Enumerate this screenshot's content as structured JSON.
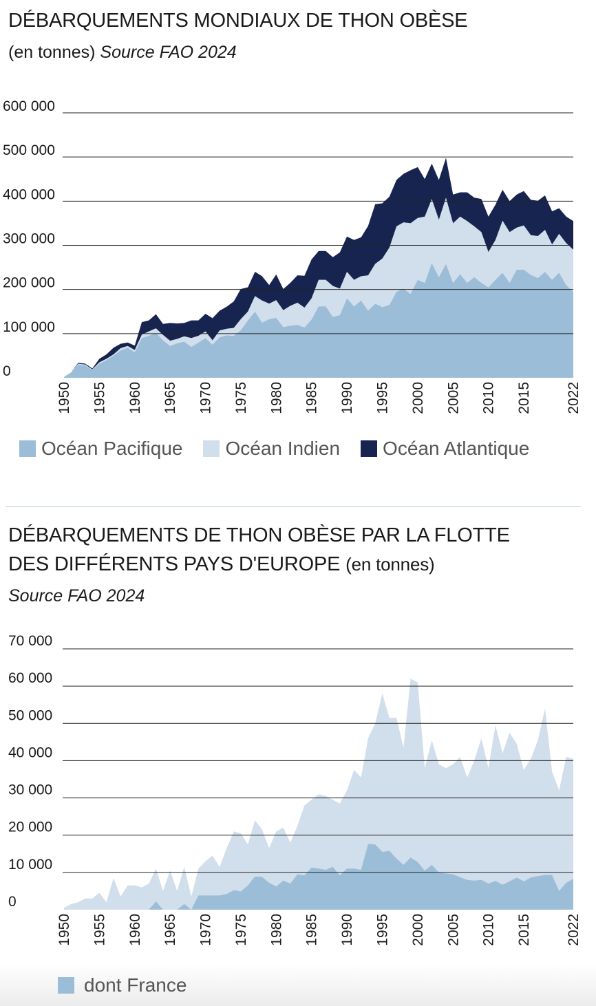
{
  "chart_data": [
    {
      "type": "area",
      "stacked": true,
      "title": "DÉBARQUEMENTS MONDIAUX DE THON OBÈSE",
      "unit": "(en tonnes)",
      "source": "Source FAO 2024",
      "ylim": [
        0,
        600000
      ],
      "yticks": [
        "600 000",
        "500 000",
        "400 000",
        "300 000",
        "200 000",
        "100 000",
        "0"
      ],
      "ytick_values": [
        600000,
        500000,
        400000,
        300000,
        200000,
        100000,
        0
      ],
      "xticks": [
        "1950",
        "1955",
        "1960",
        "1965",
        "1970",
        "1975",
        "1980",
        "1985",
        "1990",
        "1995",
        "2000",
        "2005",
        "2010",
        "2015",
        "2022"
      ],
      "xtick_values": [
        1950,
        1955,
        1960,
        1965,
        1970,
        1975,
        1980,
        1985,
        1990,
        1995,
        2000,
        2005,
        2010,
        2015,
        2022
      ],
      "xlim": [
        1950,
        2022
      ],
      "grid": true,
      "legend": "bottom",
      "x": [
        1950,
        1951,
        1952,
        1953,
        1954,
        1955,
        1956,
        1957,
        1958,
        1959,
        1960,
        1961,
        1962,
        1963,
        1964,
        1965,
        1966,
        1967,
        1968,
        1969,
        1970,
        1971,
        1972,
        1973,
        1974,
        1975,
        1976,
        1977,
        1978,
        1979,
        1980,
        1981,
        1982,
        1983,
        1984,
        1985,
        1986,
        1987,
        1988,
        1989,
        1990,
        1991,
        1992,
        1993,
        1994,
        1995,
        1996,
        1997,
        1998,
        1999,
        2000,
        2001,
        2002,
        2003,
        2004,
        2005,
        2006,
        2007,
        2008,
        2009,
        2010,
        2011,
        2012,
        2013,
        2014,
        2015,
        2016,
        2017,
        2018,
        2019,
        2020,
        2021,
        2022
      ],
      "series": [
        {
          "name": "Océan Pacifique",
          "color": "#9bbdd7",
          "values": [
            2000,
            12000,
            30000,
            28000,
            18000,
            32000,
            40000,
            50000,
            62000,
            68000,
            58000,
            90000,
            95000,
            102000,
            85000,
            72000,
            78000,
            82000,
            70000,
            80000,
            90000,
            75000,
            92000,
            96000,
            95000,
            108000,
            130000,
            150000,
            125000,
            133000,
            136000,
            115000,
            118000,
            120000,
            114000,
            132000,
            162000,
            162000,
            138000,
            142000,
            180000,
            162000,
            175000,
            152000,
            168000,
            160000,
            165000,
            195000,
            202000,
            190000,
            222000,
            215000,
            260000,
            228000,
            258000,
            215000,
            235000,
            215000,
            228000,
            215000,
            205000,
            222000,
            238000,
            215000,
            245000,
            245000,
            233000,
            226000,
            240000,
            222000,
            238000,
            210000,
            195000
          ]
        },
        {
          "name": "Océan Indien",
          "color": "#d1deeb",
          "values": [
            0,
            0,
            2000,
            2000,
            1000,
            3000,
            3000,
            3000,
            5000,
            4000,
            5000,
            8000,
            10000,
            10000,
            12000,
            12000,
            10000,
            12000,
            20000,
            15000,
            15000,
            10000,
            15000,
            15000,
            18000,
            25000,
            20000,
            35000,
            50000,
            35000,
            40000,
            38000,
            45000,
            50000,
            45000,
            48000,
            60000,
            60000,
            70000,
            60000,
            60000,
            60000,
            55000,
            80000,
            90000,
            110000,
            130000,
            148000,
            150000,
            160000,
            140000,
            150000,
            145000,
            130000,
            150000,
            135000,
            130000,
            140000,
            115000,
            115000,
            80000,
            90000,
            118000,
            115000,
            95000,
            100000,
            90000,
            95000,
            95000,
            80000,
            88000,
            95000,
            95000
          ]
        },
        {
          "name": "Océan Atlantique",
          "color": "#172450",
          "values": [
            0,
            0,
            2000,
            2000,
            2000,
            8000,
            10000,
            15000,
            10000,
            8000,
            10000,
            28000,
            25000,
            32000,
            25000,
            40000,
            35000,
            30000,
            40000,
            35000,
            40000,
            50000,
            45000,
            50000,
            60000,
            68000,
            55000,
            55000,
            55000,
            42000,
            58000,
            48000,
            52000,
            62000,
            72000,
            88000,
            65000,
            65000,
            65000,
            82000,
            80000,
            90000,
            88000,
            112000,
            135000,
            125000,
            115000,
            105000,
            110000,
            120000,
            115000,
            85000,
            80000,
            90000,
            90000,
            65000,
            55000,
            65000,
            65000,
            75000,
            80000,
            80000,
            70000,
            70000,
            75000,
            78000,
            80000,
            80000,
            78000,
            75000,
            58000,
            60000,
            65000
          ]
        }
      ]
    },
    {
      "type": "area",
      "stacked": false,
      "title_lines": [
        "DÉBARQUEMENTS DE THON OBÈSE PAR LA FLOTTE",
        "DES DIFFÉRENTS PAYS D'EUROPE"
      ],
      "unit": "(en tonnes)",
      "source": "Source FAO 2024",
      "ylim": [
        0,
        70000
      ],
      "yticks": [
        "70 000",
        "60 000",
        "50 000",
        "40 000",
        "30 000",
        "20 000",
        "10 000",
        "0"
      ],
      "ytick_values": [
        70000,
        60000,
        50000,
        40000,
        30000,
        20000,
        10000,
        0
      ],
      "xticks": [
        "1950",
        "1955",
        "1960",
        "1965",
        "1970",
        "1975",
        "1980",
        "1985",
        "1990",
        "1995",
        "2000",
        "2005",
        "2010",
        "2015",
        "2022"
      ],
      "xtick_values": [
        1950,
        1955,
        1960,
        1965,
        1970,
        1975,
        1980,
        1985,
        1990,
        1995,
        2000,
        2005,
        2010,
        2015,
        2022
      ],
      "xlim": [
        1950,
        2022
      ],
      "grid": true,
      "legend": "bottom",
      "x": [
        1950,
        1951,
        1952,
        1953,
        1954,
        1955,
        1956,
        1957,
        1958,
        1959,
        1960,
        1961,
        1962,
        1963,
        1964,
        1965,
        1966,
        1967,
        1968,
        1969,
        1970,
        1971,
        1972,
        1973,
        1974,
        1975,
        1976,
        1977,
        1978,
        1979,
        1980,
        1981,
        1982,
        1983,
        1984,
        1985,
        1986,
        1987,
        1988,
        1989,
        1990,
        1991,
        1992,
        1993,
        1994,
        1995,
        1996,
        1997,
        1998,
        1999,
        2000,
        2001,
        2002,
        2003,
        2004,
        2005,
        2006,
        2007,
        2008,
        2009,
        2010,
        2011,
        2012,
        2013,
        2014,
        2015,
        2016,
        2017,
        2018,
        2019,
        2020,
        2021,
        2022
      ],
      "series": [
        {
          "name": "",
          "color": "#d1deeb",
          "values": [
            500,
            1500,
            2000,
            3000,
            3000,
            4500,
            2000,
            8500,
            3500,
            6500,
            6500,
            6000,
            7000,
            11000,
            5000,
            10500,
            5000,
            11500,
            3500,
            11000,
            13000,
            14500,
            11500,
            16500,
            21000,
            20500,
            17500,
            24000,
            21500,
            16500,
            21000,
            22000,
            18000,
            22500,
            28000,
            29500,
            31000,
            30500,
            29500,
            28500,
            32000,
            37500,
            35500,
            46000,
            50000,
            58000,
            51500,
            51500,
            43500,
            62000,
            61000,
            38000,
            45500,
            39000,
            38000,
            39000,
            41000,
            35500,
            40000,
            46000,
            38000,
            49500,
            42000,
            47500,
            44500,
            37500,
            40500,
            45500,
            54000,
            37000,
            32000,
            41000,
            40500
          ]
        },
        {
          "name": "dont France",
          "color": "#9bbdd7",
          "values": [
            0,
            0,
            0,
            0,
            0,
            0,
            0,
            0,
            0,
            0,
            0,
            0,
            0,
            2200,
            0,
            0,
            0,
            1500,
            0,
            3800,
            3800,
            3800,
            3800,
            4200,
            5200,
            4900,
            6500,
            8900,
            8800,
            7200,
            6200,
            7800,
            7000,
            9500,
            9200,
            11300,
            11000,
            10700,
            11500,
            9200,
            11000,
            11000,
            10700,
            17600,
            17500,
            15500,
            15800,
            13700,
            12000,
            14000,
            12800,
            10500,
            12000,
            10000,
            9700,
            9500,
            8700,
            8000,
            7800,
            8000,
            7000,
            7700,
            6700,
            7600,
            8600,
            7600,
            8600,
            9000,
            9300,
            9300,
            5000,
            7200,
            8300
          ]
        }
      ]
    }
  ],
  "chart1": {
    "title": "DÉBARQUEMENTS MONDIAUX DE THON OBÈSE",
    "unit": "(en tonnes)",
    "source": "Source FAO 2024",
    "legend": [
      {
        "label": "Océan Pacifique",
        "color": "#9bbdd7"
      },
      {
        "label": "Océan Indien",
        "color": "#d1deeb"
      },
      {
        "label": "Océan Atlantique",
        "color": "#172450"
      }
    ]
  },
  "chart2": {
    "title_line1": "DÉBARQUEMENTS DE THON OBÈSE PAR LA FLOTTE",
    "title_line2": "DES DIFFÉRENTS PAYS D'EUROPE",
    "unit": "(en tonnes)",
    "source": "Source FAO 2024",
    "legend": [
      {
        "label": "dont France",
        "color": "#9bbdd7"
      }
    ]
  }
}
